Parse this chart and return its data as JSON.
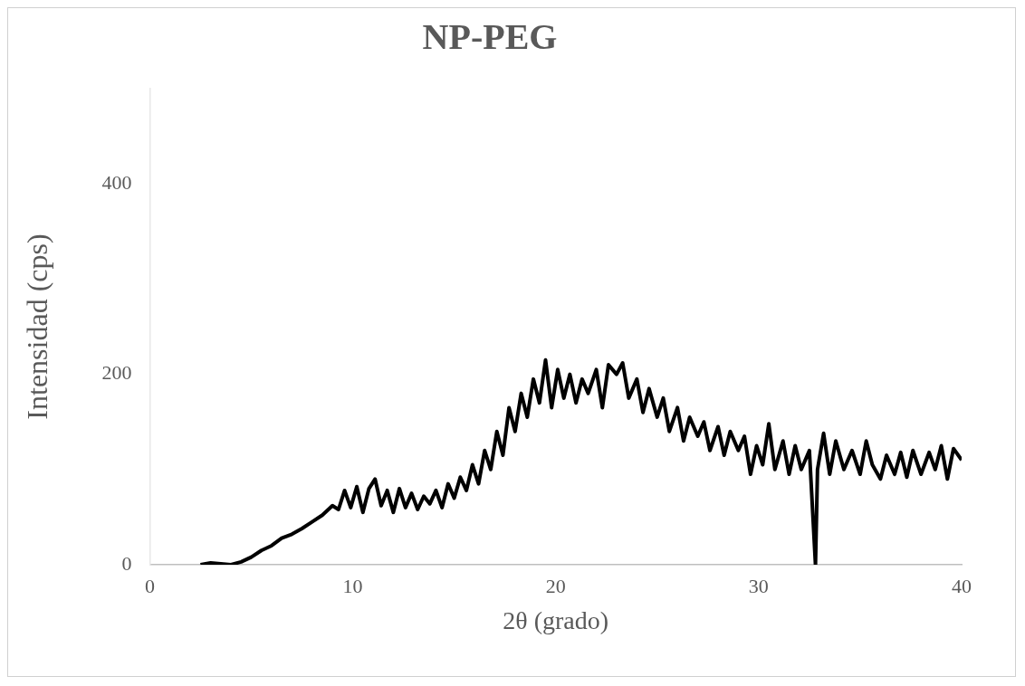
{
  "chart_data": {
    "type": "line",
    "title": "NP-PEG",
    "xlabel": "2θ (grado)",
    "ylabel": "Intensidad (cps)",
    "xlim": [
      0,
      40
    ],
    "xticks": [
      0,
      10,
      20,
      30,
      40
    ],
    "ylim": [
      0,
      500
    ],
    "yticks": [
      0,
      200,
      400
    ],
    "grid": false,
    "legend": false,
    "marker": "none",
    "line_style": "solid",
    "series": [
      {
        "color": "#000000",
        "x": [
          2.5,
          3,
          3.5,
          4,
          4.5,
          5,
          5.5,
          6,
          6.5,
          7,
          7.5,
          8,
          8.5,
          9,
          9.3,
          9.6,
          9.9,
          10.2,
          10.5,
          10.8,
          11.1,
          11.4,
          11.7,
          12,
          12.3,
          12.6,
          12.9,
          13.2,
          13.5,
          13.8,
          14.1,
          14.4,
          14.7,
          15,
          15.3,
          15.6,
          15.9,
          16.2,
          16.5,
          16.8,
          17.1,
          17.4,
          17.7,
          18,
          18.3,
          18.6,
          18.9,
          19.2,
          19.5,
          19.8,
          20.1,
          20.4,
          20.7,
          21,
          21.3,
          21.6,
          22,
          22.3,
          22.6,
          23,
          23.3,
          23.6,
          24,
          24.3,
          24.6,
          25,
          25.3,
          25.6,
          26,
          26.3,
          26.6,
          27,
          27.3,
          27.6,
          28,
          28.3,
          28.6,
          29,
          29.3,
          29.6,
          29.9,
          30.2,
          30.5,
          30.8,
          31.2,
          31.5,
          31.8,
          32.1,
          32.5,
          32.8,
          32.9,
          33.2,
          33.5,
          33.8,
          34.2,
          34.6,
          35,
          35.3,
          35.6,
          36,
          36.3,
          36.7,
          37,
          37.3,
          37.6,
          38,
          38.4,
          38.7,
          39,
          39.3,
          39.6,
          40
        ],
        "values": [
          0,
          2,
          1,
          0,
          3,
          8,
          15,
          20,
          28,
          32,
          38,
          45,
          52,
          62,
          58,
          78,
          60,
          82,
          55,
          80,
          90,
          62,
          78,
          55,
          80,
          60,
          75,
          58,
          72,
          64,
          78,
          60,
          85,
          70,
          92,
          78,
          105,
          85,
          120,
          100,
          140,
          115,
          165,
          140,
          180,
          155,
          195,
          170,
          215,
          165,
          205,
          175,
          200,
          170,
          195,
          180,
          205,
          165,
          210,
          200,
          212,
          175,
          195,
          160,
          185,
          155,
          175,
          140,
          165,
          130,
          155,
          135,
          150,
          120,
          145,
          115,
          140,
          120,
          135,
          95,
          125,
          105,
          148,
          100,
          130,
          95,
          125,
          100,
          120,
          0,
          100,
          138,
          95,
          130,
          100,
          120,
          95,
          130,
          105,
          90,
          115,
          95,
          118,
          92,
          120,
          95,
          118,
          100,
          125,
          90,
          122,
          110
        ]
      }
    ]
  }
}
